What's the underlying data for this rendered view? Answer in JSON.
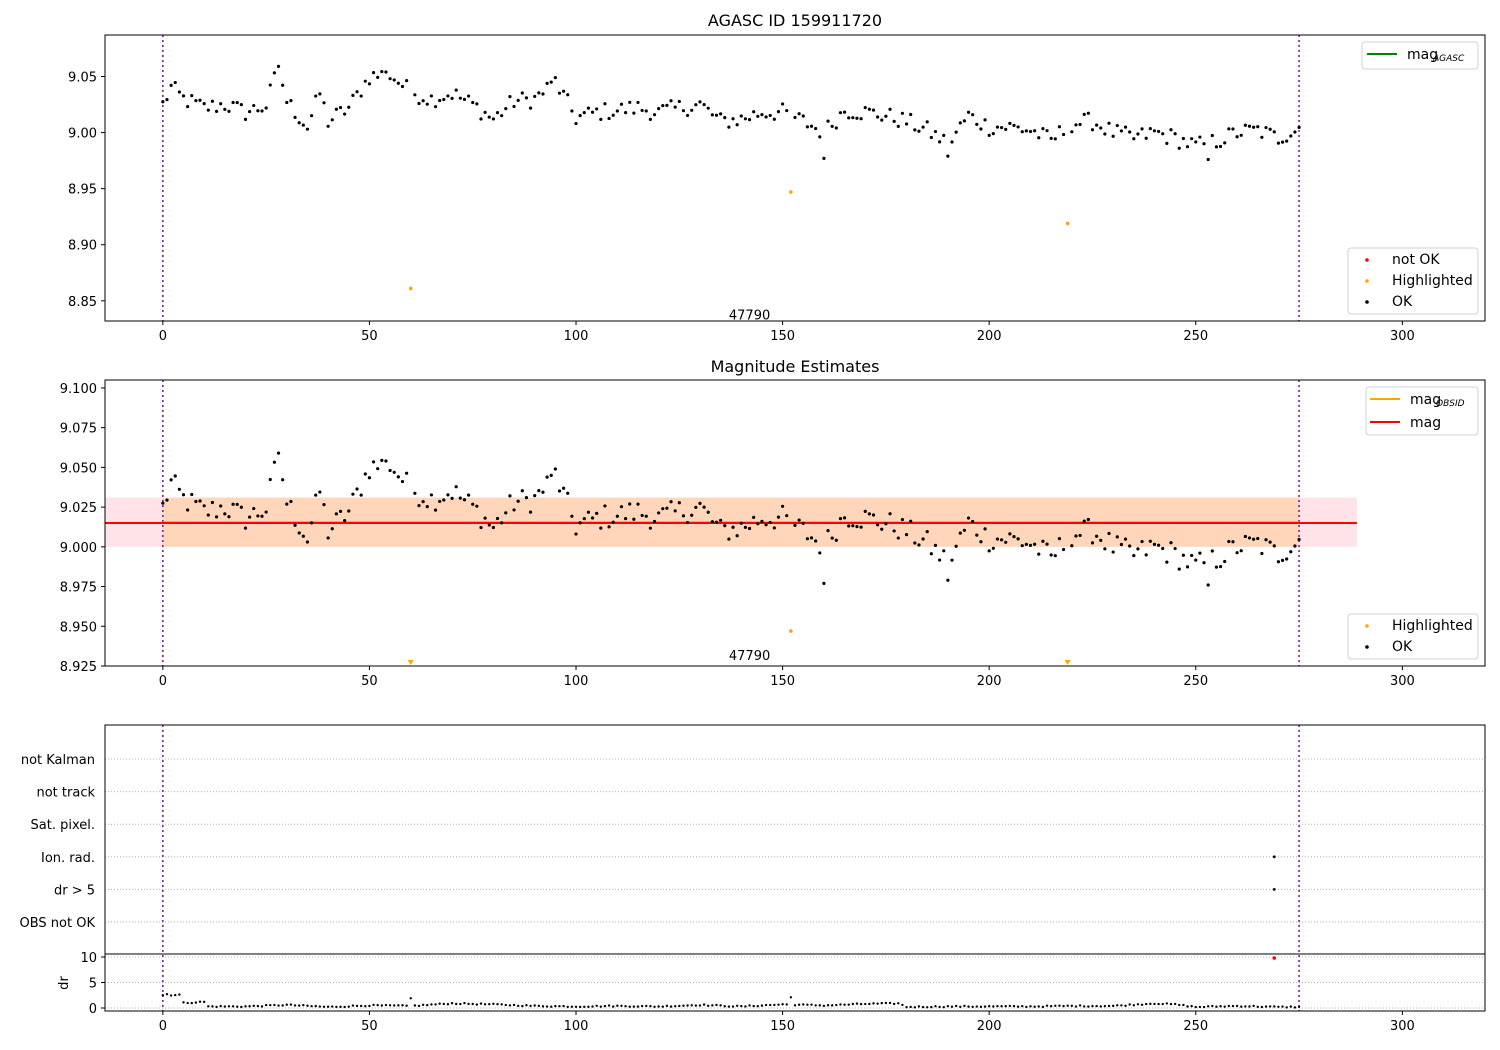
{
  "chart_data": [
    {
      "type": "scatter",
      "title": "AGASC ID 159911720",
      "xlim": [
        -14,
        320
      ],
      "ylim": [
        8.832,
        9.087
      ],
      "xticks": [
        0,
        50,
        100,
        150,
        200,
        250,
        300
      ],
      "yticks": [
        8.85,
        8.9,
        8.95,
        9.0,
        9.05
      ],
      "ytick_labels": [
        "8.85",
        "8.90",
        "8.95",
        "9.00",
        "9.05"
      ],
      "vlines": [
        0,
        275
      ],
      "annotation": {
        "text": "47790",
        "x": 137,
        "y": 8.838
      },
      "legend_line": {
        "label": "mag",
        "subscript": "AGASC",
        "color": "#008000",
        "placement": "top-right"
      },
      "legend_points": {
        "placement": "lower-right",
        "items": [
          {
            "label": "not OK",
            "color": "#ff0000"
          },
          {
            "label": "Highlighted",
            "color": "#ffa500"
          },
          {
            "label": "OK",
            "color": "#000000"
          }
        ]
      },
      "highlighted": [
        [
          60,
          8.861
        ],
        [
          152,
          8.947
        ],
        [
          219,
          8.919
        ]
      ],
      "ok_anchors": [
        [
          0,
          9.025
        ],
        [
          2,
          9.04
        ],
        [
          5,
          9.03
        ],
        [
          10,
          9.022
        ],
        [
          15,
          9.025
        ],
        [
          20,
          9.018
        ],
        [
          25,
          9.024
        ],
        [
          28,
          9.059
        ],
        [
          30,
          9.028
        ],
        [
          35,
          9.005
        ],
        [
          38,
          9.035
        ],
        [
          40,
          9.01
        ],
        [
          45,
          9.022
        ],
        [
          50,
          9.05
        ],
        [
          55,
          9.052
        ],
        [
          60,
          9.036
        ],
        [
          65,
          9.03
        ],
        [
          70,
          9.035
        ],
        [
          75,
          9.025
        ],
        [
          80,
          9.012
        ],
        [
          85,
          9.028
        ],
        [
          90,
          9.03
        ],
        [
          95,
          9.045
        ],
        [
          100,
          9.013
        ],
        [
          105,
          9.018
        ],
        [
          110,
          9.02
        ],
        [
          115,
          9.022
        ],
        [
          120,
          9.018
        ],
        [
          125,
          9.022
        ],
        [
          130,
          9.025
        ],
        [
          135,
          9.01
        ],
        [
          140,
          9.012
        ],
        [
          145,
          9.018
        ],
        [
          150,
          9.018
        ],
        [
          155,
          9.01
        ],
        [
          160,
          9.0
        ],
        [
          165,
          9.02
        ],
        [
          170,
          9.018
        ],
        [
          175,
          9.015
        ],
        [
          180,
          9.01
        ],
        [
          185,
          9.002
        ],
        [
          190,
          8.99
        ],
        [
          195,
          9.015
        ],
        [
          200,
          9.005
        ],
        [
          205,
          9.005
        ],
        [
          210,
          9.002
        ],
        [
          215,
          8.993
        ],
        [
          220,
          9.008
        ],
        [
          225,
          9.01
        ],
        [
          230,
          9.0
        ],
        [
          235,
          8.995
        ],
        [
          240,
          9.0
        ],
        [
          245,
          8.995
        ],
        [
          250,
          8.988
        ],
        [
          255,
          8.992
        ],
        [
          260,
          9.0
        ],
        [
          265,
          9.002
        ],
        [
          270,
          8.995
        ],
        [
          275,
          9.005
        ]
      ],
      "ok_outliers": [
        [
          28,
          9.059
        ],
        [
          54,
          9.054
        ],
        [
          95,
          9.049
        ],
        [
          160,
          8.977
        ],
        [
          190,
          8.979
        ],
        [
          253,
          8.976
        ]
      ]
    },
    {
      "type": "scatter",
      "title": "Magnitude Estimates",
      "xlim": [
        -14,
        320
      ],
      "ylim": [
        8.925,
        9.105
      ],
      "xticks": [
        0,
        50,
        100,
        150,
        200,
        250,
        300
      ],
      "yticks": [
        8.925,
        8.95,
        8.975,
        9.0,
        9.025,
        9.05,
        9.075,
        9.1
      ],
      "ytick_labels": [
        "8.925",
        "8.950",
        "8.975",
        "9.000",
        "9.025",
        "9.050",
        "9.075",
        "9.100"
      ],
      "vlines": [
        0,
        275
      ],
      "annotation": {
        "text": "47790",
        "x": 137,
        "y": 8.932
      },
      "mag": 9.015,
      "mag_obsid": 9.0155,
      "band": [
        9.0,
        9.031
      ],
      "band_x": [
        -14,
        289
      ],
      "obsid_band_x": [
        0,
        275
      ],
      "legend_lines": {
        "placement": "top-right",
        "items": [
          {
            "label": "mag",
            "subscript": "OBSID",
            "color": "#ffa500"
          },
          {
            "label": "mag",
            "subscript": "",
            "color": "#ff0000"
          }
        ]
      },
      "legend_points": {
        "placement": "lower-right",
        "items": [
          {
            "label": "Highlighted",
            "color": "#ffa500"
          },
          {
            "label": "OK",
            "color": "#000000"
          }
        ]
      },
      "highlighted_points": [
        [
          152,
          8.947
        ]
      ],
      "highlighted_below_axis": [
        60,
        219
      ]
    },
    {
      "type": "scatter",
      "title": "",
      "xlim": [
        -14,
        320
      ],
      "xticks": [
        0,
        50,
        100,
        150,
        200,
        250,
        300
      ],
      "flag_rows": [
        "not Kalman",
        "not track",
        "Sat. pixel.",
        "Ion. rad.",
        "dr > 5",
        "OBS not OK"
      ],
      "flag_points": [
        {
          "row": "Ion. rad.",
          "x": 269
        },
        {
          "row": "dr > 5",
          "x": 269
        }
      ],
      "dr": {
        "ylabel": "dr",
        "ylim": [
          0,
          10
        ],
        "yticks": [
          0,
          5,
          10
        ],
        "notok_point": [
          269,
          9.8
        ],
        "anchors": [
          [
            0,
            2.5
          ],
          [
            4,
            2.6
          ],
          [
            5,
            1.0
          ],
          [
            10,
            1.2
          ],
          [
            11,
            0.3
          ],
          [
            20,
            0.3
          ],
          [
            30,
            0.6
          ],
          [
            40,
            0.2
          ],
          [
            50,
            0.5
          ],
          [
            60,
            0.4
          ],
          [
            70,
            0.9
          ],
          [
            80,
            0.7
          ],
          [
            90,
            0.4
          ],
          [
            100,
            0.3
          ],
          [
            110,
            0.4
          ],
          [
            120,
            0.3
          ],
          [
            130,
            0.6
          ],
          [
            140,
            0.3
          ],
          [
            150,
            0.7
          ],
          [
            160,
            0.5
          ],
          [
            170,
            0.8
          ],
          [
            178,
            0.9
          ],
          [
            180,
            0.2
          ],
          [
            190,
            0.3
          ],
          [
            200,
            0.3
          ],
          [
            210,
            0.3
          ],
          [
            220,
            0.4
          ],
          [
            230,
            0.4
          ],
          [
            240,
            0.9
          ],
          [
            245,
            0.7
          ],
          [
            250,
            0.2
          ],
          [
            260,
            0.4
          ],
          [
            270,
            0.2
          ],
          [
            275,
            0.2
          ]
        ],
        "outliers": [
          [
            60,
            1.9
          ],
          [
            152,
            2.1
          ],
          [
            1,
            2.7
          ]
        ]
      }
    }
  ]
}
